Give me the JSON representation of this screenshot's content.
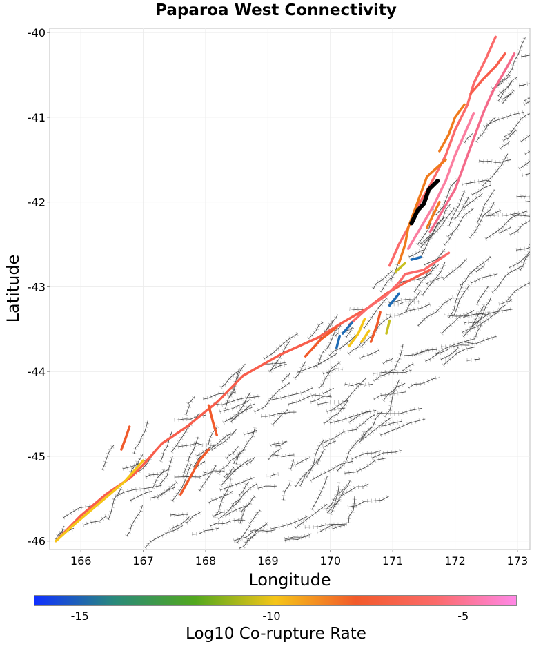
{
  "title": "Paparoa West Connectivity",
  "xaxis": {
    "label": "Longitude",
    "ticks": [
      "166",
      "167",
      "168",
      "169",
      "170",
      "171",
      "172",
      "173"
    ]
  },
  "yaxis": {
    "label": "Latitude",
    "ticks": [
      "-40",
      "-41",
      "-42",
      "-43",
      "-44",
      "-45",
      "-46"
    ]
  },
  "colorbar": {
    "label": "Log10 Co-rupture Rate",
    "ticks": [
      "-15",
      "-10",
      "-5"
    ],
    "stops": [
      "#1030ff",
      "#2a8a7a",
      "#52a81e",
      "#f5c518",
      "#f25a2a",
      "#fb6a6a",
      "#ff88e6"
    ]
  },
  "chart_data": {
    "type": "map",
    "title": "Paparoa West Connectivity",
    "xlabel": "Longitude",
    "ylabel": "Latitude",
    "xlim": [
      165.5,
      173.2
    ],
    "ylim": [
      -46.1,
      -39.95
    ],
    "colorbar": {
      "label": "Log10 Co-rupture Rate",
      "range": [
        -16.2,
        -3.6
      ]
    },
    "source_fault": {
      "name": "Paparoa West",
      "color": "#000000",
      "coords": [
        [
          171.3,
          -42.25
        ],
        [
          171.4,
          -42.1
        ],
        [
          171.5,
          -42.02
        ],
        [
          171.58,
          -41.85
        ],
        [
          171.72,
          -41.75
        ]
      ]
    },
    "colored_faults": [
      {
        "rate": -5.5,
        "color": "#f85e4c",
        "coords": [
          [
            165.6,
            -46.0
          ],
          [
            166.0,
            -45.7
          ],
          [
            166.4,
            -45.45
          ],
          [
            166.8,
            -45.25
          ],
          [
            167.0,
            -45.1
          ],
          [
            167.3,
            -44.85
          ],
          [
            167.7,
            -44.65
          ],
          [
            168.2,
            -44.35
          ],
          [
            168.6,
            -44.05
          ],
          [
            169.2,
            -43.8
          ],
          [
            169.8,
            -43.6
          ],
          [
            170.2,
            -43.42
          ],
          [
            170.6,
            -43.25
          ],
          [
            170.9,
            -43.08
          ],
          [
            171.2,
            -42.95
          ],
          [
            171.6,
            -42.8
          ]
        ]
      },
      {
        "rate": -10.2,
        "color": "#f5c518",
        "coords": [
          [
            165.6,
            -46.0
          ],
          [
            165.9,
            -45.8
          ],
          [
            166.3,
            -45.55
          ],
          [
            166.7,
            -45.3
          ],
          [
            167.0,
            -45.05
          ]
        ]
      },
      {
        "rate": -5.2,
        "color": "#fb6a6a",
        "coords": [
          [
            170.3,
            -43.45
          ],
          [
            170.6,
            -43.25
          ],
          [
            170.9,
            -43.1
          ],
          [
            171.1,
            -42.95
          ],
          [
            171.2,
            -42.85
          ],
          [
            171.5,
            -42.8
          ],
          [
            171.9,
            -42.6
          ]
        ]
      },
      {
        "rate": -5.6,
        "color": "#f25a2a",
        "coords": [
          [
            169.6,
            -43.82
          ],
          [
            169.85,
            -43.62
          ],
          [
            170.1,
            -43.48
          ]
        ]
      },
      {
        "rate": -6.0,
        "color": "#f05a2b",
        "coords": [
          [
            167.6,
            -45.45
          ],
          [
            167.75,
            -45.25
          ],
          [
            167.9,
            -45.05
          ],
          [
            168.05,
            -44.92
          ]
        ]
      },
      {
        "rate": -5.8,
        "color": "#f25a2a",
        "coords": [
          [
            168.05,
            -44.4
          ],
          [
            168.12,
            -44.6
          ],
          [
            168.18,
            -44.75
          ]
        ]
      },
      {
        "rate": -6.1,
        "color": "#f05a2b",
        "coords": [
          [
            166.65,
            -44.92
          ],
          [
            166.72,
            -44.78
          ],
          [
            166.78,
            -44.65
          ]
        ]
      },
      {
        "rate": -6.2,
        "color": "#f05a2b",
        "coords": [
          [
            170.65,
            -43.65
          ],
          [
            170.75,
            -43.45
          ],
          [
            170.8,
            -43.3
          ]
        ]
      },
      {
        "rate": -10.4,
        "color": "#f5c518",
        "coords": [
          [
            170.3,
            -43.7
          ],
          [
            170.45,
            -43.55
          ],
          [
            170.55,
            -43.38
          ]
        ]
      },
      {
        "rate": -10.6,
        "color": "#f5c518",
        "coords": [
          [
            170.5,
            -43.65
          ],
          [
            170.62,
            -43.52
          ]
        ]
      },
      {
        "rate": -11.5,
        "color": "#c7c020",
        "coords": [
          [
            170.9,
            -43.55
          ],
          [
            170.95,
            -43.4
          ]
        ]
      },
      {
        "rate": -14.8,
        "color": "#1f6cb5",
        "coords": [
          [
            170.1,
            -43.72
          ],
          [
            170.15,
            -43.58
          ]
        ]
      },
      {
        "rate": -14.6,
        "color": "#1f6cb5",
        "coords": [
          [
            170.2,
            -43.55
          ],
          [
            170.35,
            -43.42
          ]
        ]
      },
      {
        "rate": -14.9,
        "color": "#1f6cb5",
        "coords": [
          [
            170.95,
            -43.22
          ],
          [
            171.1,
            -43.08
          ]
        ]
      },
      {
        "rate": -14.7,
        "color": "#1f6cb5",
        "coords": [
          [
            171.3,
            -42.68
          ],
          [
            171.45,
            -42.65
          ]
        ]
      },
      {
        "rate": -11.2,
        "color": "#c7c020",
        "coords": [
          [
            171.05,
            -42.82
          ],
          [
            171.2,
            -42.72
          ]
        ]
      },
      {
        "rate": -5.0,
        "color": "#fb6a6a",
        "coords": [
          [
            170.95,
            -42.75
          ],
          [
            171.1,
            -42.5
          ],
          [
            171.25,
            -42.3
          ],
          [
            171.4,
            -42.05
          ],
          [
            171.6,
            -41.8
          ],
          [
            171.85,
            -41.45
          ],
          [
            172.0,
            -41.15
          ],
          [
            172.2,
            -40.85
          ],
          [
            172.3,
            -40.6
          ],
          [
            172.5,
            -40.3
          ],
          [
            172.65,
            -40.05
          ]
        ]
      },
      {
        "rate": -7.0,
        "color": "#f07a1c",
        "coords": [
          [
            171.1,
            -42.72
          ],
          [
            171.2,
            -42.5
          ],
          [
            171.25,
            -42.3
          ],
          [
            171.35,
            -42.1
          ],
          [
            171.45,
            -41.9
          ],
          [
            171.55,
            -41.7
          ],
          [
            171.7,
            -41.6
          ],
          [
            171.85,
            -41.5
          ]
        ]
      },
      {
        "rate": -4.5,
        "color": "#fb7ea0",
        "coords": [
          [
            171.25,
            -42.55
          ],
          [
            171.45,
            -42.3
          ],
          [
            171.65,
            -42.05
          ],
          [
            171.85,
            -41.75
          ],
          [
            172.0,
            -41.45
          ],
          [
            172.15,
            -41.2
          ],
          [
            172.3,
            -40.95
          ]
        ]
      },
      {
        "rate": -4.8,
        "color": "#f46a8a",
        "coords": [
          [
            171.6,
            -42.35
          ],
          [
            171.8,
            -42.1
          ],
          [
            172.0,
            -41.85
          ],
          [
            172.15,
            -41.55
          ],
          [
            172.3,
            -41.25
          ],
          [
            172.45,
            -40.95
          ],
          [
            172.6,
            -40.7
          ],
          [
            172.8,
            -40.45
          ],
          [
            172.95,
            -40.25
          ]
        ]
      },
      {
        "rate": -6.4,
        "color": "#f07a1c",
        "coords": [
          [
            171.55,
            -42.3
          ],
          [
            171.65,
            -42.15
          ],
          [
            171.75,
            -42.0
          ]
        ]
      },
      {
        "rate": -6.0,
        "color": "#f07a1c",
        "coords": [
          [
            171.75,
            -41.4
          ],
          [
            171.9,
            -41.2
          ],
          [
            172.0,
            -41.0
          ],
          [
            172.15,
            -40.85
          ]
        ]
      },
      {
        "rate": -5.3,
        "color": "#f85e4c",
        "coords": [
          [
            172.25,
            -40.72
          ],
          [
            172.45,
            -40.55
          ],
          [
            172.65,
            -40.4
          ],
          [
            172.8,
            -40.25
          ]
        ]
      }
    ]
  }
}
